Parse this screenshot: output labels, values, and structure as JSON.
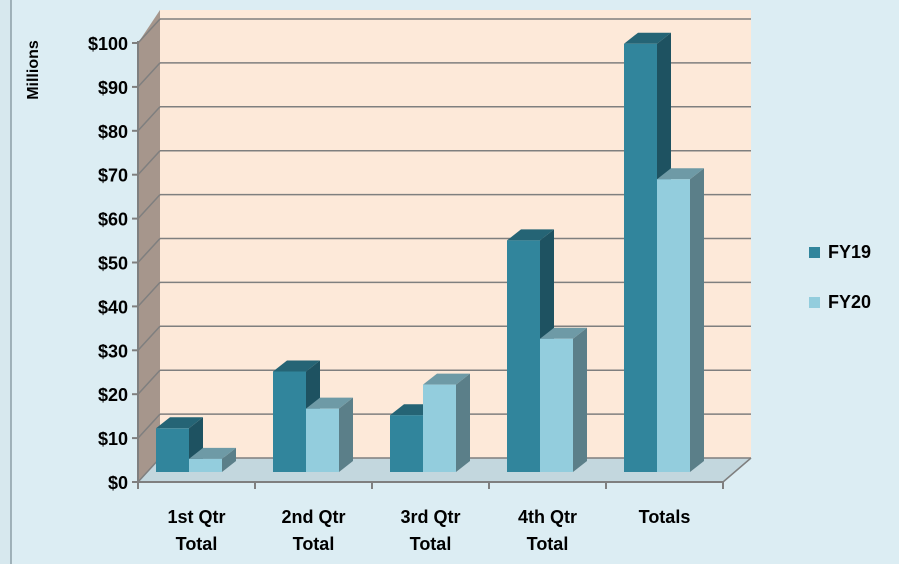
{
  "chart_data": {
    "type": "bar",
    "title": "",
    "ylabel": "Millions",
    "xlabel": "",
    "categories": [
      [
        "1st Qtr",
        "Total"
      ],
      [
        "2nd Qtr",
        "Total"
      ],
      [
        "3rd Qtr",
        "Total"
      ],
      [
        "4th Qtr",
        "Total"
      ],
      [
        "Totals"
      ]
    ],
    "series": [
      {
        "name": "FY19",
        "values": [
          10,
          23,
          13,
          53,
          98
        ],
        "color": "#31859c"
      },
      {
        "name": "FY20",
        "values": [
          3,
          14.5,
          20,
          30.5,
          67
        ],
        "color": "#93cddd"
      }
    ],
    "ylim": [
      0,
      100
    ],
    "yticks": [
      {
        "value": 0,
        "label": "$0"
      },
      {
        "value": 10,
        "label": "$10"
      },
      {
        "value": 20,
        "label": "$20"
      },
      {
        "value": 30,
        "label": "$30"
      },
      {
        "value": 40,
        "label": "$40"
      },
      {
        "value": 50,
        "label": "$50"
      },
      {
        "value": 60,
        "label": "$60"
      },
      {
        "value": 70,
        "label": "$70"
      },
      {
        "value": 80,
        "label": "$80"
      },
      {
        "value": 90,
        "label": "$90"
      },
      {
        "value": 100,
        "label": "$100"
      }
    ],
    "grid": true,
    "legend": "right",
    "three_d": true,
    "colors": {
      "background": "#dcedf3",
      "back_wall": "#fde9d9",
      "side_wall": "#a6968c",
      "floor": "#c3d7de",
      "gridline": "#7f7f7f"
    }
  }
}
